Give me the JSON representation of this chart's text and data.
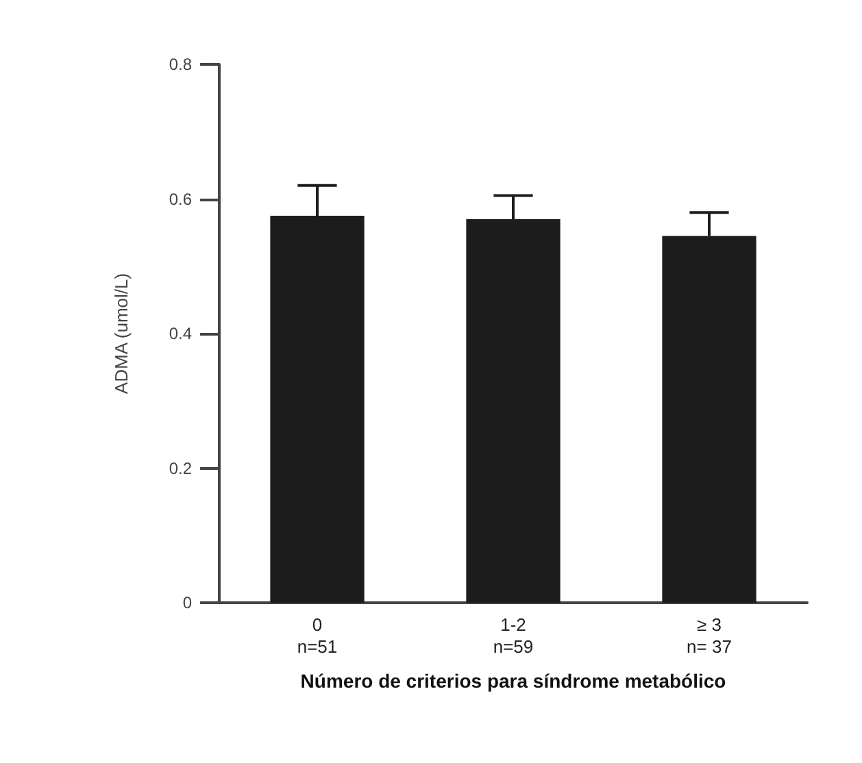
{
  "chart_data": {
    "type": "bar",
    "categories": [
      "0\nn=51",
      "1-2\nn=59",
      "≥ 3\nn= 37"
    ],
    "values": [
      0.575,
      0.57,
      0.545
    ],
    "errors": [
      [
        0.575,
        0.62
      ],
      [
        0.57,
        0.605
      ],
      [
        0.545,
        0.58
      ]
    ],
    "color": "#1c1c1c",
    "xlabel": "Número de criterios para síndrome metabólico",
    "ylabel": "ADMA (umol/L)",
    "ylim": [
      0,
      0.8
    ],
    "yticks": [
      0,
      0.2,
      0.4,
      0.6,
      0.8
    ],
    "grid": false
  }
}
